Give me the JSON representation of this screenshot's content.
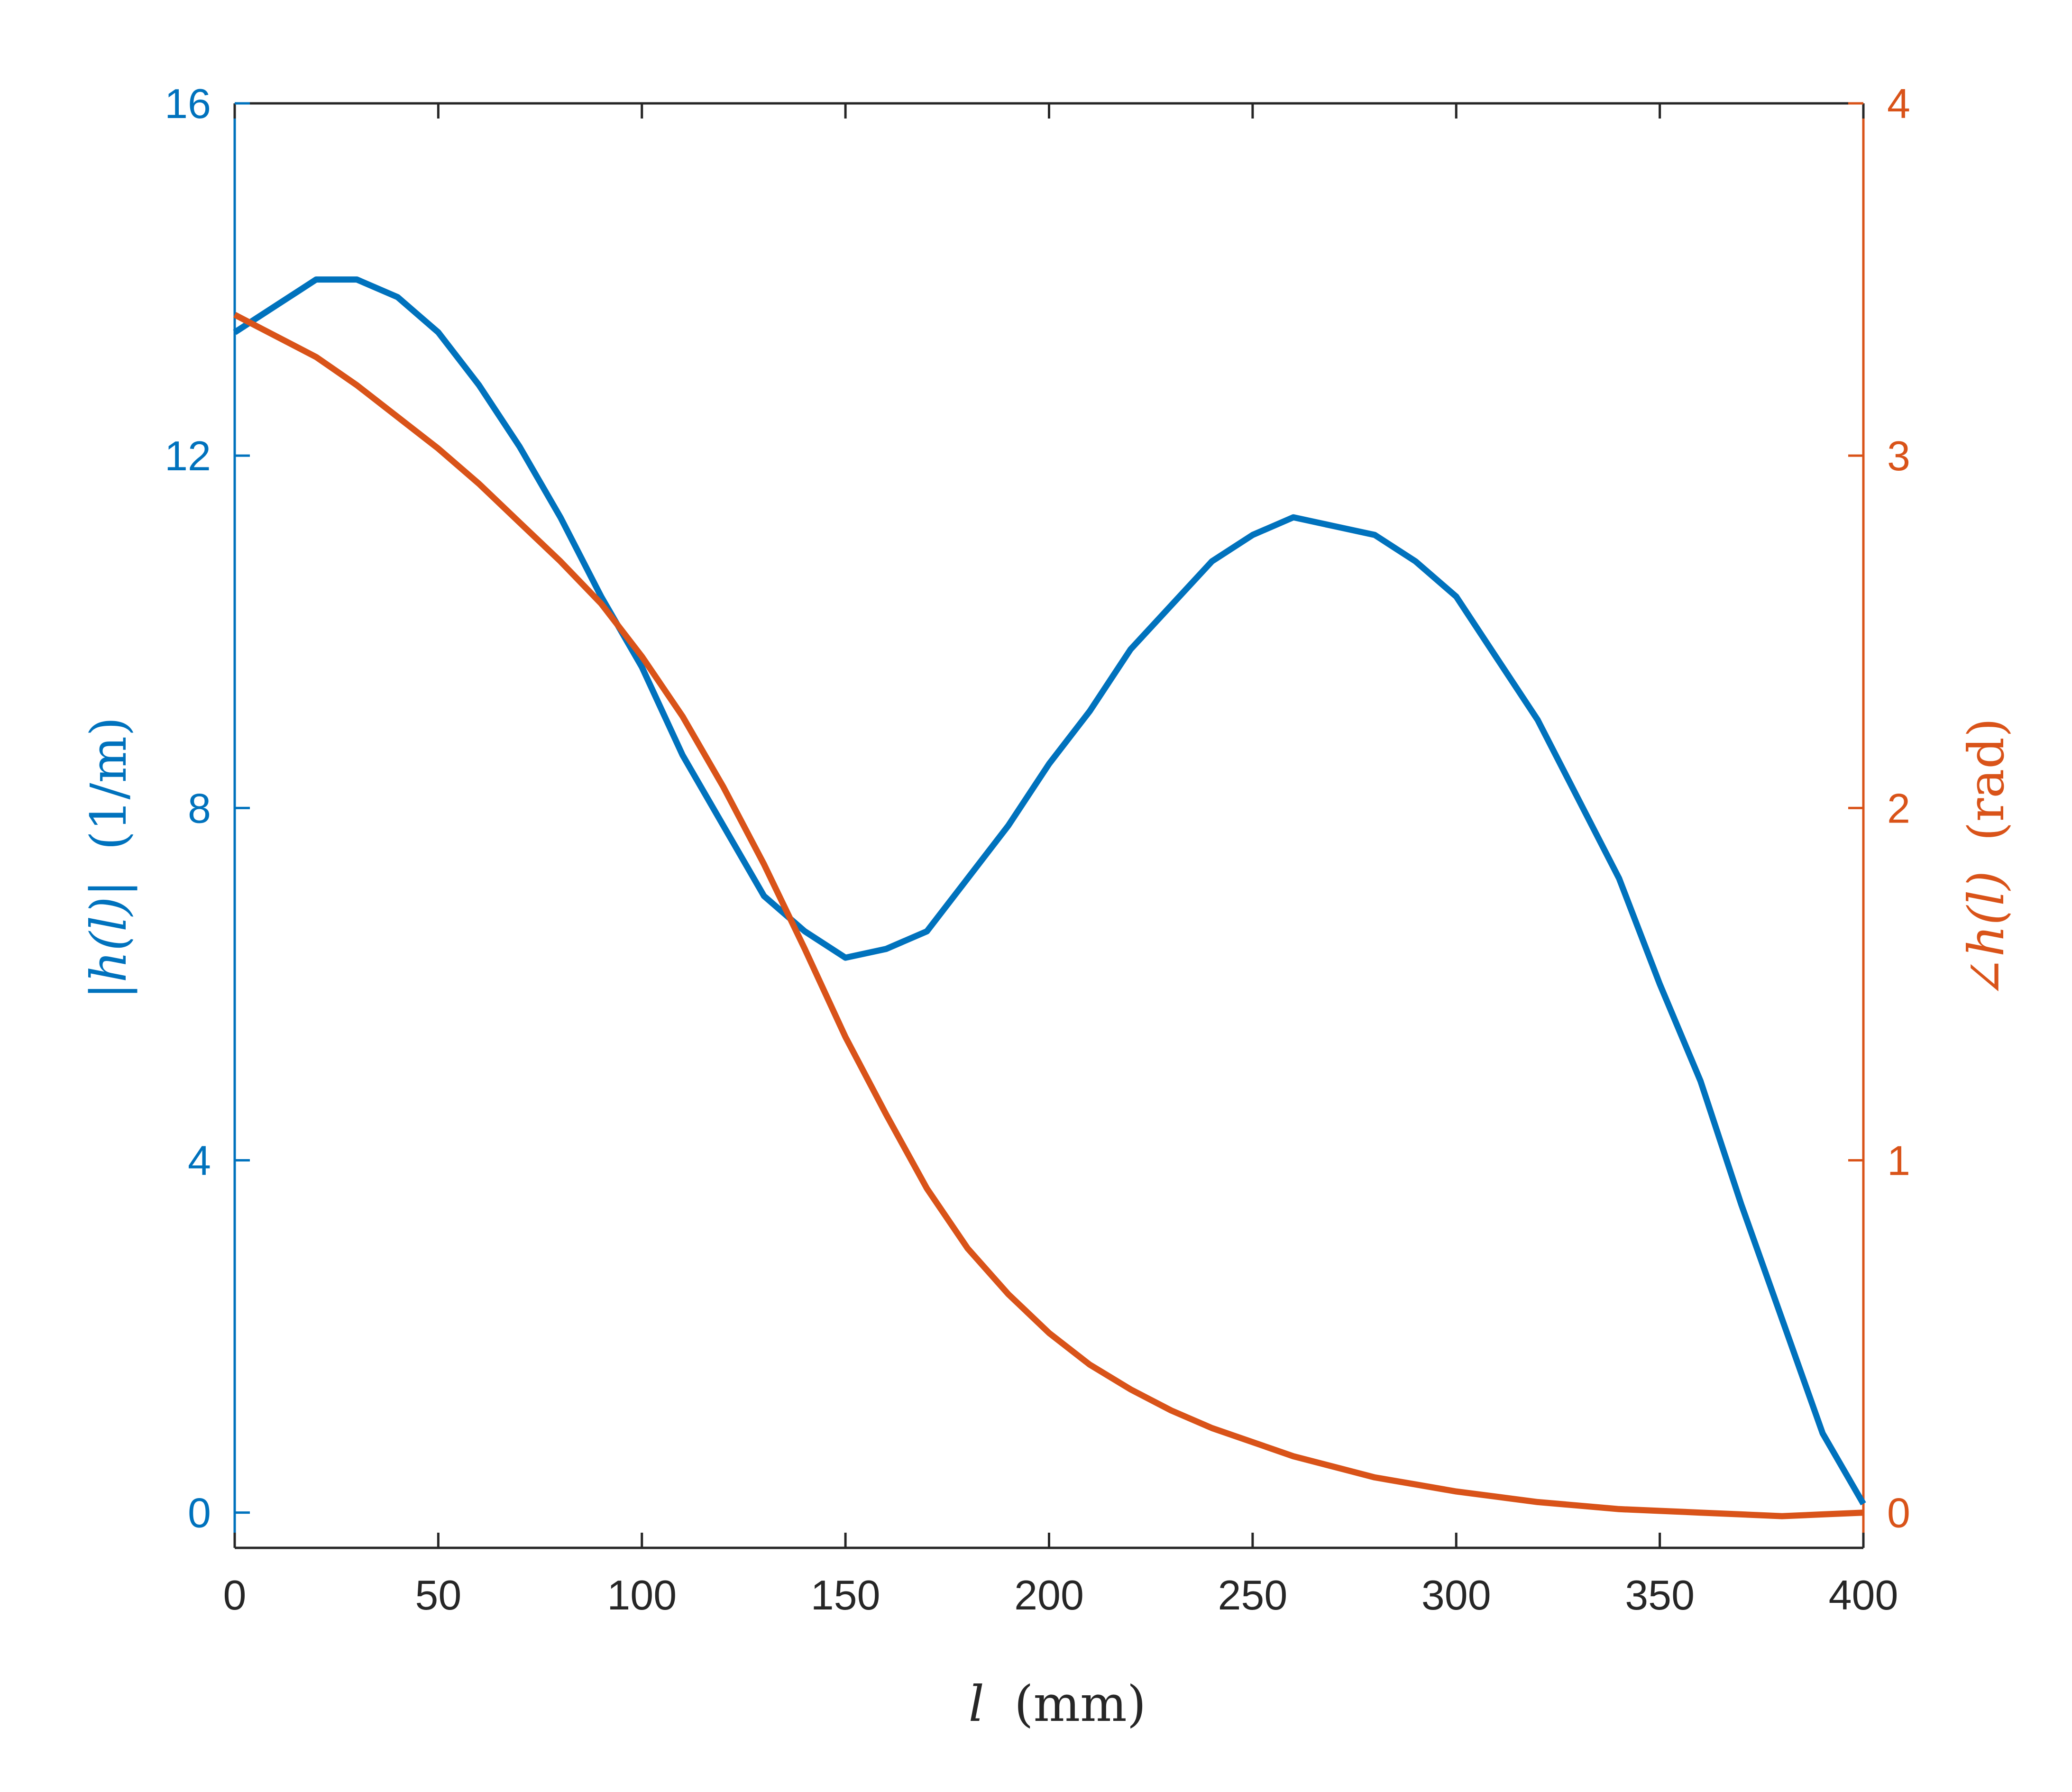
{
  "colors": {
    "magnitude": "#0072BD",
    "phase": "#D95319",
    "axis_black": "#262626"
  },
  "chart_data": {
    "type": "line",
    "xlabel": {
      "var": "l",
      "unit": "(mm)"
    },
    "ylabel_left": {
      "text": "|h(l)|",
      "unit": "(1/m)"
    },
    "ylabel_right": {
      "text": "∠h(l)",
      "unit": "(rad)"
    },
    "xlim": [
      0,
      400
    ],
    "ylim_left": [
      -0.4,
      16
    ],
    "ylim_right": [
      -0.1,
      4
    ],
    "xticks": [
      "0",
      "50",
      "100",
      "150",
      "200",
      "250",
      "300",
      "350",
      "400"
    ],
    "yticks_left": [
      "0",
      "4",
      "8",
      "12",
      "16"
    ],
    "yticks_right": [
      "0",
      "1",
      "2",
      "3",
      "4"
    ],
    "grid": false,
    "series": [
      {
        "axis": "left",
        "x": [
          0,
          10,
          20,
          30,
          40,
          50,
          60,
          70,
          80,
          90,
          100,
          110,
          120,
          130,
          140,
          150,
          160,
          170,
          180,
          190,
          200,
          210,
          220,
          230,
          240,
          250,
          260,
          270,
          280,
          290,
          300,
          310,
          320,
          330,
          340,
          350,
          360,
          370,
          380,
          390,
          400
        ],
        "y": [
          13.4,
          13.7,
          14.0,
          14.0,
          13.8,
          13.4,
          12.8,
          12.1,
          11.3,
          10.4,
          9.6,
          8.6,
          7.8,
          7.0,
          6.6,
          6.3,
          6.4,
          6.6,
          7.2,
          7.8,
          8.5,
          9.1,
          9.8,
          10.3,
          10.8,
          11.1,
          11.3,
          11.2,
          11.1,
          10.8,
          10.4,
          9.7,
          9.0,
          8.1,
          7.2,
          6.0,
          4.9,
          3.5,
          2.2,
          0.9,
          0.1
        ]
      },
      {
        "axis": "right",
        "x": [
          0,
          10,
          20,
          30,
          40,
          50,
          60,
          70,
          80,
          90,
          100,
          110,
          120,
          130,
          140,
          150,
          160,
          170,
          180,
          190,
          200,
          210,
          220,
          230,
          240,
          250,
          260,
          270,
          280,
          290,
          300,
          310,
          320,
          330,
          340,
          350,
          360,
          370,
          380,
          390,
          400
        ],
        "y": [
          3.4,
          3.34,
          3.28,
          3.2,
          3.11,
          3.02,
          2.92,
          2.81,
          2.7,
          2.58,
          2.43,
          2.26,
          2.06,
          1.84,
          1.6,
          1.35,
          1.13,
          0.92,
          0.75,
          0.62,
          0.51,
          0.42,
          0.35,
          0.29,
          0.24,
          0.2,
          0.16,
          0.13,
          0.1,
          0.08,
          0.06,
          0.045,
          0.03,
          0.02,
          0.01,
          0.005,
          0.0,
          -0.005,
          -0.01,
          -0.005,
          0.0
        ]
      }
    ]
  }
}
